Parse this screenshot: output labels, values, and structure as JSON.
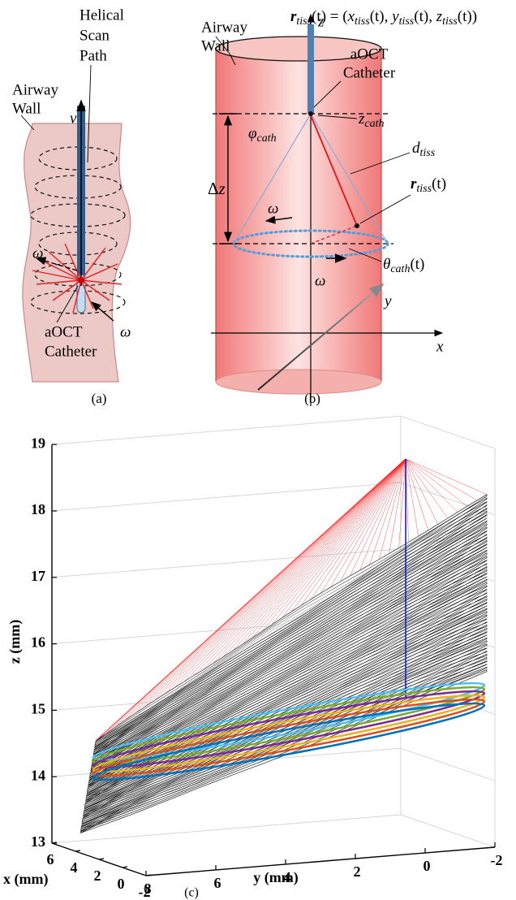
{
  "panel_a": {
    "scan_path_label": [
      "Helical",
      "Scan",
      "Path"
    ],
    "airway_wall_label": [
      "Airway",
      "Wall"
    ],
    "velocity_label": "v",
    "omega_labels": [
      "ω",
      "ω"
    ],
    "catheter_label": [
      "aOCT",
      "Catheter"
    ],
    "caption": "(a)"
  },
  "panel_b": {
    "equation": [
      {
        "text": "r",
        "style": "bi"
      },
      {
        "text": "tiss",
        "style": "sub"
      },
      {
        "text": "(t) = (",
        "style": "n"
      },
      {
        "text": "x",
        "style": "i"
      },
      {
        "text": "tiss",
        "style": "sub"
      },
      {
        "text": "(t), ",
        "style": "n"
      },
      {
        "text": "y",
        "style": "i"
      },
      {
        "text": "tiss",
        "style": "sub"
      },
      {
        "text": "(t), ",
        "style": "n"
      },
      {
        "text": "z",
        "style": "i"
      },
      {
        "text": "tiss",
        "style": "sub"
      },
      {
        "text": "(t))",
        "style": "n"
      }
    ],
    "airway_wall_label": [
      "Airway",
      "Wall"
    ],
    "catheter_label": [
      "aOCT",
      "Catheter"
    ],
    "z_axis_label": "z",
    "z_cath_label": [
      {
        "text": "z",
        "style": "i"
      },
      {
        "text": "cath",
        "style": "sub"
      }
    ],
    "phi_cath_label": [
      {
        "text": "φ",
        "style": "i"
      },
      {
        "text": "cath",
        "style": "sub"
      }
    ],
    "d_tiss_label": [
      {
        "text": "d",
        "style": "i"
      },
      {
        "text": "tiss",
        "style": "sub"
      }
    ],
    "r_tiss_label": [
      {
        "text": "r",
        "style": "bi"
      },
      {
        "text": "tiss",
        "style": "sub"
      },
      {
        "text": "(t)",
        "style": "n"
      }
    ],
    "delta_z_label": [
      {
        "text": "Δ",
        "style": "n"
      },
      {
        "text": "z",
        "style": "i"
      }
    ],
    "omega_labels": [
      "ω",
      "ω"
    ],
    "theta_cath_label": [
      {
        "text": "θ",
        "style": "i"
      },
      {
        "text": "cath",
        "style": "sub"
      },
      {
        "text": "(t)",
        "style": "n"
      }
    ],
    "y_axis_label": "y",
    "x_axis_label": "x",
    "caption": "(b)"
  },
  "panel_c": {
    "z_axis_label": "z (mm)",
    "y_axis_label": "y (mm)",
    "x_axis_label": "x (mm)",
    "zticks": [
      13,
      14,
      15,
      16,
      17,
      18,
      19
    ],
    "yticks": [
      8,
      6,
      4,
      2,
      0,
      -2
    ],
    "xticks": [
      6,
      4,
      2,
      0,
      -2
    ],
    "caption": "(c)"
  }
}
